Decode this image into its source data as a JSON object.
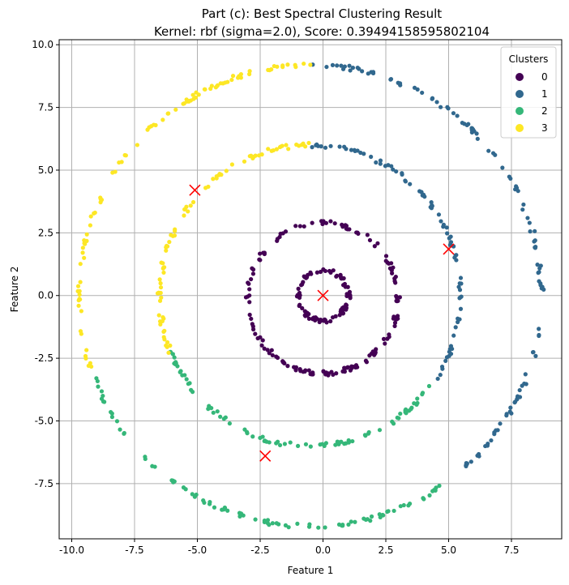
{
  "chart_data": {
    "type": "scatter",
    "title": "Part (c): Best Spectral Clustering Result",
    "subtitle": "Kernel: rbf (sigma=2.0), Score: 0.39494158595802104",
    "xlabel": "Feature 1",
    "ylabel": "Feature 2",
    "xlim": [
      -10.5,
      9.5
    ],
    "ylim": [
      -9.7,
      10.2
    ],
    "xticks": [
      -10.0,
      -7.5,
      -5.0,
      -2.5,
      0.0,
      2.5,
      5.0,
      7.5
    ],
    "yticks": [
      -7.5,
      -5.0,
      -2.5,
      0.0,
      2.5,
      5.0,
      7.5,
      10.0
    ],
    "grid": true,
    "legend": {
      "title": "Clusters",
      "placement": "top-right"
    },
    "series": [
      {
        "name": "0",
        "color": "#440154",
        "rings": [
          {
            "cx": 0.0,
            "cy": 0.0,
            "r": 1.0,
            "start_deg": 0,
            "end_deg": 360,
            "count": 90
          },
          {
            "cx": 0.0,
            "cy": -0.1,
            "r": 3.0,
            "start_deg": 0,
            "end_deg": 360,
            "count": 150
          }
        ]
      },
      {
        "name": "1",
        "color": "#31688e",
        "rings": [
          {
            "cx": -0.5,
            "cy": 0.0,
            "r": 6.0,
            "start_deg": -35,
            "end_deg": 90,
            "count": 85
          },
          {
            "cx": -0.5,
            "cy": 0.0,
            "r": 9.2,
            "start_deg": -48,
            "end_deg": 90,
            "count": 120
          }
        ]
      },
      {
        "name": "2",
        "color": "#35b779",
        "rings": [
          {
            "cx": -0.5,
            "cy": 0.0,
            "r": 6.0,
            "start_deg": 202,
            "end_deg": 325,
            "count": 85
          },
          {
            "cx": -0.5,
            "cy": 0.0,
            "r": 9.2,
            "start_deg": 200,
            "end_deg": 305,
            "count": 90
          }
        ]
      },
      {
        "name": "3",
        "color": "#fde725",
        "rings": [
          {
            "cx": -0.5,
            "cy": 0.0,
            "r": 6.0,
            "start_deg": 90,
            "end_deg": 202,
            "count": 80
          },
          {
            "cx": -0.5,
            "cy": 0.0,
            "r": 9.2,
            "start_deg": 90,
            "end_deg": 200,
            "count": 95
          }
        ]
      }
    ],
    "centroids": {
      "color": "#ff0000",
      "marker": "x",
      "points": [
        {
          "x": 0.0,
          "y": 0.0
        },
        {
          "x": 5.0,
          "y": 1.85
        },
        {
          "x": -5.1,
          "y": 4.2
        },
        {
          "x": -2.3,
          "y": -6.4
        }
      ]
    }
  }
}
